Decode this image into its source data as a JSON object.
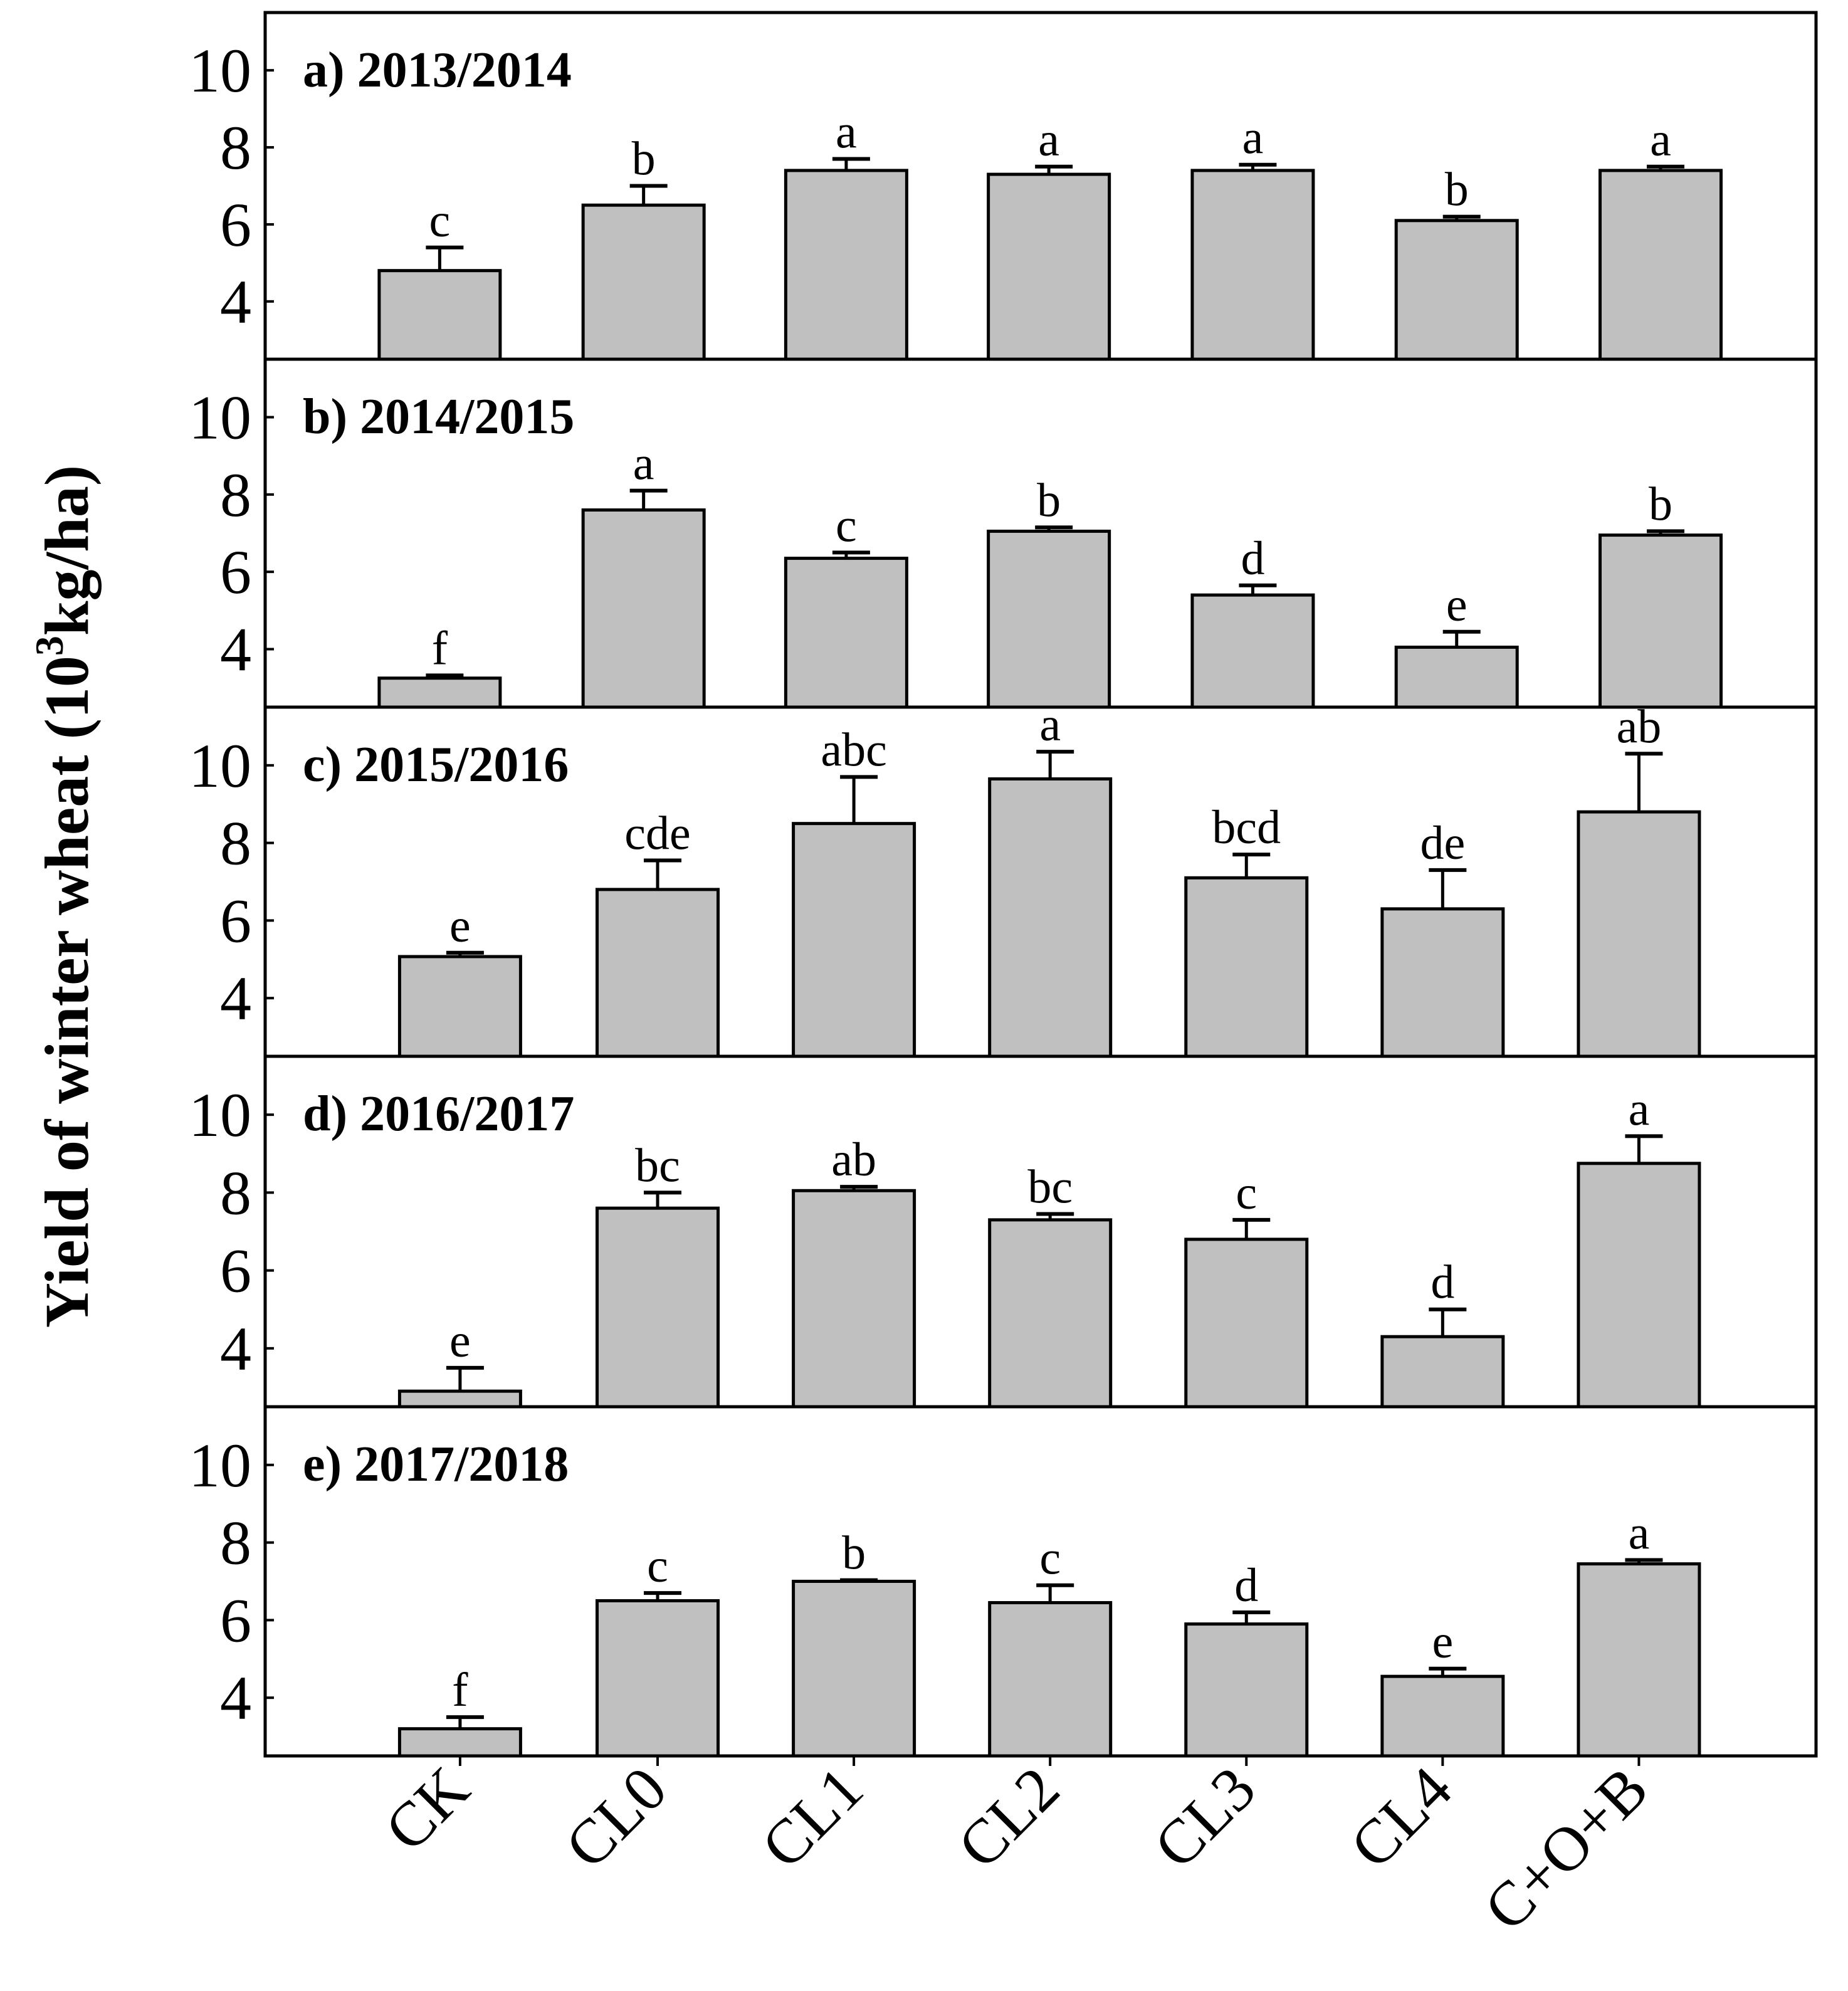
{
  "chart_data": [
    {
      "type": "bar",
      "title": "a) 2013/2014",
      "categories": [
        "CK",
        "CL0",
        "CL1",
        "CL2",
        "CL3",
        "CL4",
        "C+O+B"
      ],
      "values": [
        4.8,
        6.5,
        7.4,
        7.3,
        7.4,
        6.1,
        7.4
      ],
      "errors": [
        0.6,
        0.5,
        0.3,
        0.2,
        0.15,
        0.1,
        0.1
      ],
      "letters": [
        "c",
        "b",
        "a",
        "a",
        "a",
        "b",
        "a"
      ],
      "ylim": [
        2.5,
        11.5
      ],
      "yticks": [
        4,
        6,
        8,
        10
      ]
    },
    {
      "type": "bar",
      "title": "b) 2014/2015",
      "categories": [
        "CK",
        "CL0",
        "CL1",
        "CL2",
        "CL3",
        "CL4",
        "C+O+B"
      ],
      "values": [
        3.25,
        7.6,
        6.35,
        7.05,
        5.4,
        4.05,
        6.95
      ],
      "errors": [
        0.07,
        0.5,
        0.15,
        0.1,
        0.25,
        0.4,
        0.1
      ],
      "letters": [
        "f",
        "a",
        "c",
        "b",
        "d",
        "e",
        "b"
      ],
      "ylim": [
        2.5,
        11.5
      ],
      "yticks": [
        4,
        6,
        8,
        10
      ]
    },
    {
      "type": "bar",
      "title": "c) 2015/2016",
      "categories": [
        "CK",
        "CL0",
        "CL1",
        "CL2",
        "CL3",
        "CL4",
        "C+O+B"
      ],
      "values": [
        5.07,
        6.8,
        8.5,
        9.65,
        7.1,
        6.3,
        8.8
      ],
      "errors": [
        0.1,
        0.75,
        1.2,
        0.7,
        0.6,
        1.0,
        1.5
      ],
      "letters": [
        "e",
        "cde",
        "abc",
        "a",
        "bcd",
        "de",
        "ab"
      ],
      "ylim": [
        2.5,
        11.5
      ],
      "yticks": [
        4,
        6,
        8,
        10
      ]
    },
    {
      "type": "bar",
      "title": "d) 2016/2017",
      "categories": [
        "CK",
        "CL0",
        "CL1",
        "CL2",
        "CL3",
        "CL4",
        "C+O+B"
      ],
      "values": [
        2.9,
        7.6,
        8.05,
        7.3,
        6.8,
        4.3,
        8.75
      ],
      "errors": [
        0.6,
        0.4,
        0.1,
        0.15,
        0.5,
        0.7,
        0.7
      ],
      "letters": [
        "e",
        "bc",
        "ab",
        "bc",
        "c",
        "d",
        "a"
      ],
      "ylim": [
        2.5,
        11.5
      ],
      "yticks": [
        4,
        6,
        8,
        10
      ]
    },
    {
      "type": "bar",
      "title": "e) 2017/2018",
      "categories": [
        "CK",
        "CL0",
        "CL1",
        "CL2",
        "CL3",
        "CL4",
        "C+O+B"
      ],
      "values": [
        3.2,
        6.5,
        7.0,
        6.45,
        5.9,
        4.55,
        7.45
      ],
      "errors": [
        0.3,
        0.2,
        0.03,
        0.45,
        0.3,
        0.2,
        0.1
      ],
      "letters": [
        "f",
        "c",
        "b",
        "c",
        "d",
        "e",
        "a"
      ],
      "ylim": [
        2.5,
        11.5
      ],
      "yticks": [
        4,
        6,
        8,
        10
      ]
    }
  ],
  "ylabel_main": "Yield of winter wheat (10",
  "ylabel_sup": "3",
  "ylabel_end": "kg/ha)",
  "xticks": [
    "CK",
    "CL0",
    "CL1",
    "CL2",
    "CL3",
    "CL4",
    "C+O+B"
  ],
  "colors": {
    "bar": "#c0c0c0",
    "stroke": "#000000"
  }
}
